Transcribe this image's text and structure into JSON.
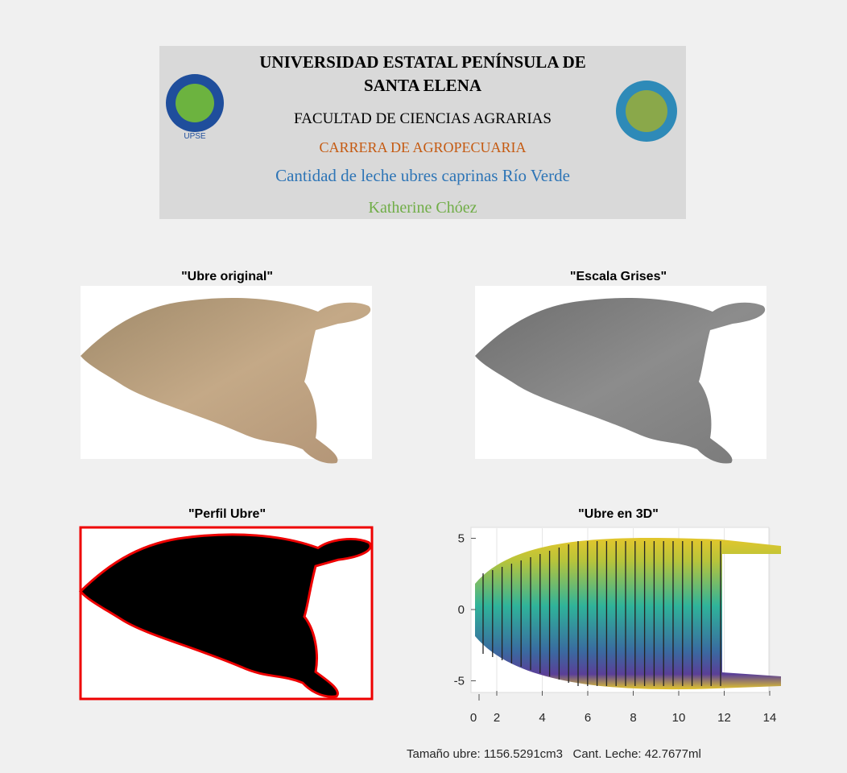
{
  "header": {
    "lines": [
      "UNIVERSIDAD ESTATAL PENÍNSULA DE",
      "SANTA ELENA",
      "FACULTAD DE CIENCIAS AGRARIAS",
      "CARRERA DE AGROPECUARIA",
      "Cantidad de leche ubres caprinas Río Verde",
      "Katherine Chóez"
    ]
  },
  "panels": [
    {
      "title": "\"Ubre original\""
    },
    {
      "title": "\"Escala Grises\""
    },
    {
      "title": "\"Perfil Ubre\""
    },
    {
      "title": "\"Ubre en 3D\""
    }
  ],
  "plot3d": {
    "xticks": [
      2,
      4,
      6,
      8,
      10,
      12,
      14
    ],
    "yticks": [
      5,
      0,
      -5
    ],
    "zticks": [
      0
    ]
  },
  "footer": {
    "text": "Tamaño ubre: 1156.5291cm3   Cant. Leche: 42.7677ml"
  }
}
